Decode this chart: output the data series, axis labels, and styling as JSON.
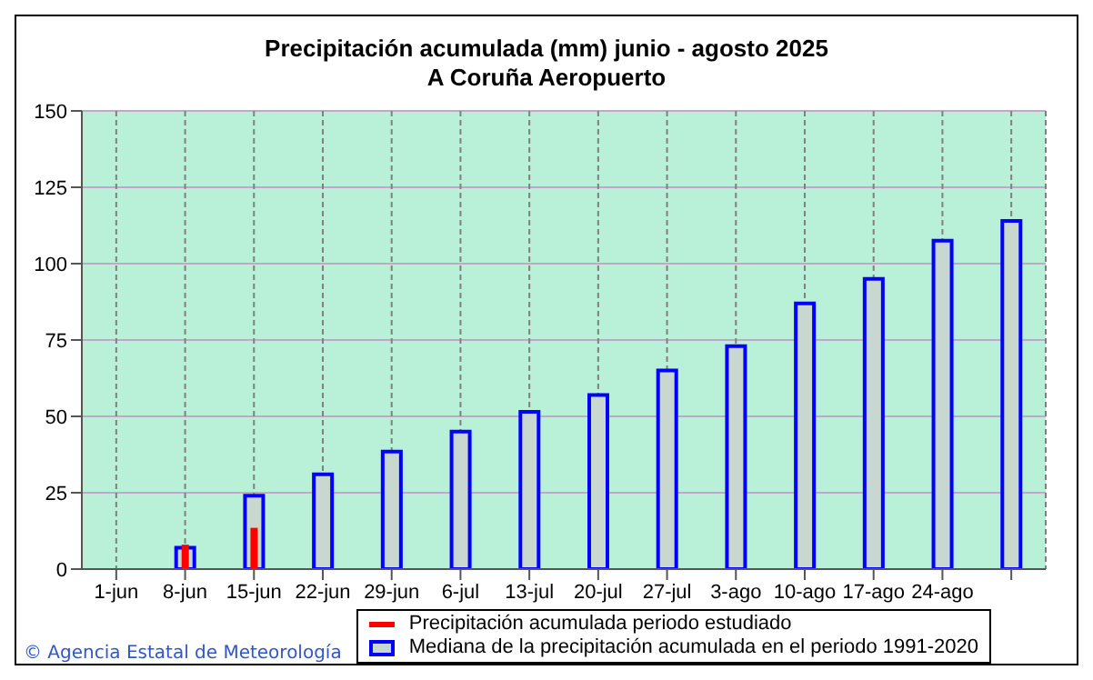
{
  "chart_data": {
    "type": "bar",
    "title": "Precipitación acumulada (mm) junio - agosto 2025",
    "subtitle": "A Coruña Aeropuerto",
    "categories": [
      "1-jun",
      "8-jun",
      "15-jun",
      "22-jun",
      "29-jun",
      "6-jul",
      "13-jul",
      "20-jul",
      "27-jul",
      "3-ago",
      "10-ago",
      "17-ago",
      "24-ago",
      null
    ],
    "series": [
      {
        "name": "Mediana de la precipitación acumulada en el periodo 1991-2020",
        "color": "#0000ff",
        "values": [
          null,
          7,
          24,
          31,
          38.5,
          45,
          51.5,
          57,
          65,
          73,
          87,
          95,
          107.5,
          114
        ]
      },
      {
        "name": "Precipitación acumulada periodo estudiado",
        "color": "#ff0000",
        "values": [
          null,
          8,
          13.5,
          null,
          null,
          null,
          null,
          null,
          null,
          null,
          null,
          null,
          null,
          null
        ]
      }
    ],
    "ylim": [
      0,
      150
    ],
    "yticks": [
      0,
      25,
      50,
      75,
      100,
      125,
      150
    ],
    "grid": true,
    "legend": "bottom",
    "annotations": [
      "© Agencia Estatal de Meteorología"
    ]
  }
}
